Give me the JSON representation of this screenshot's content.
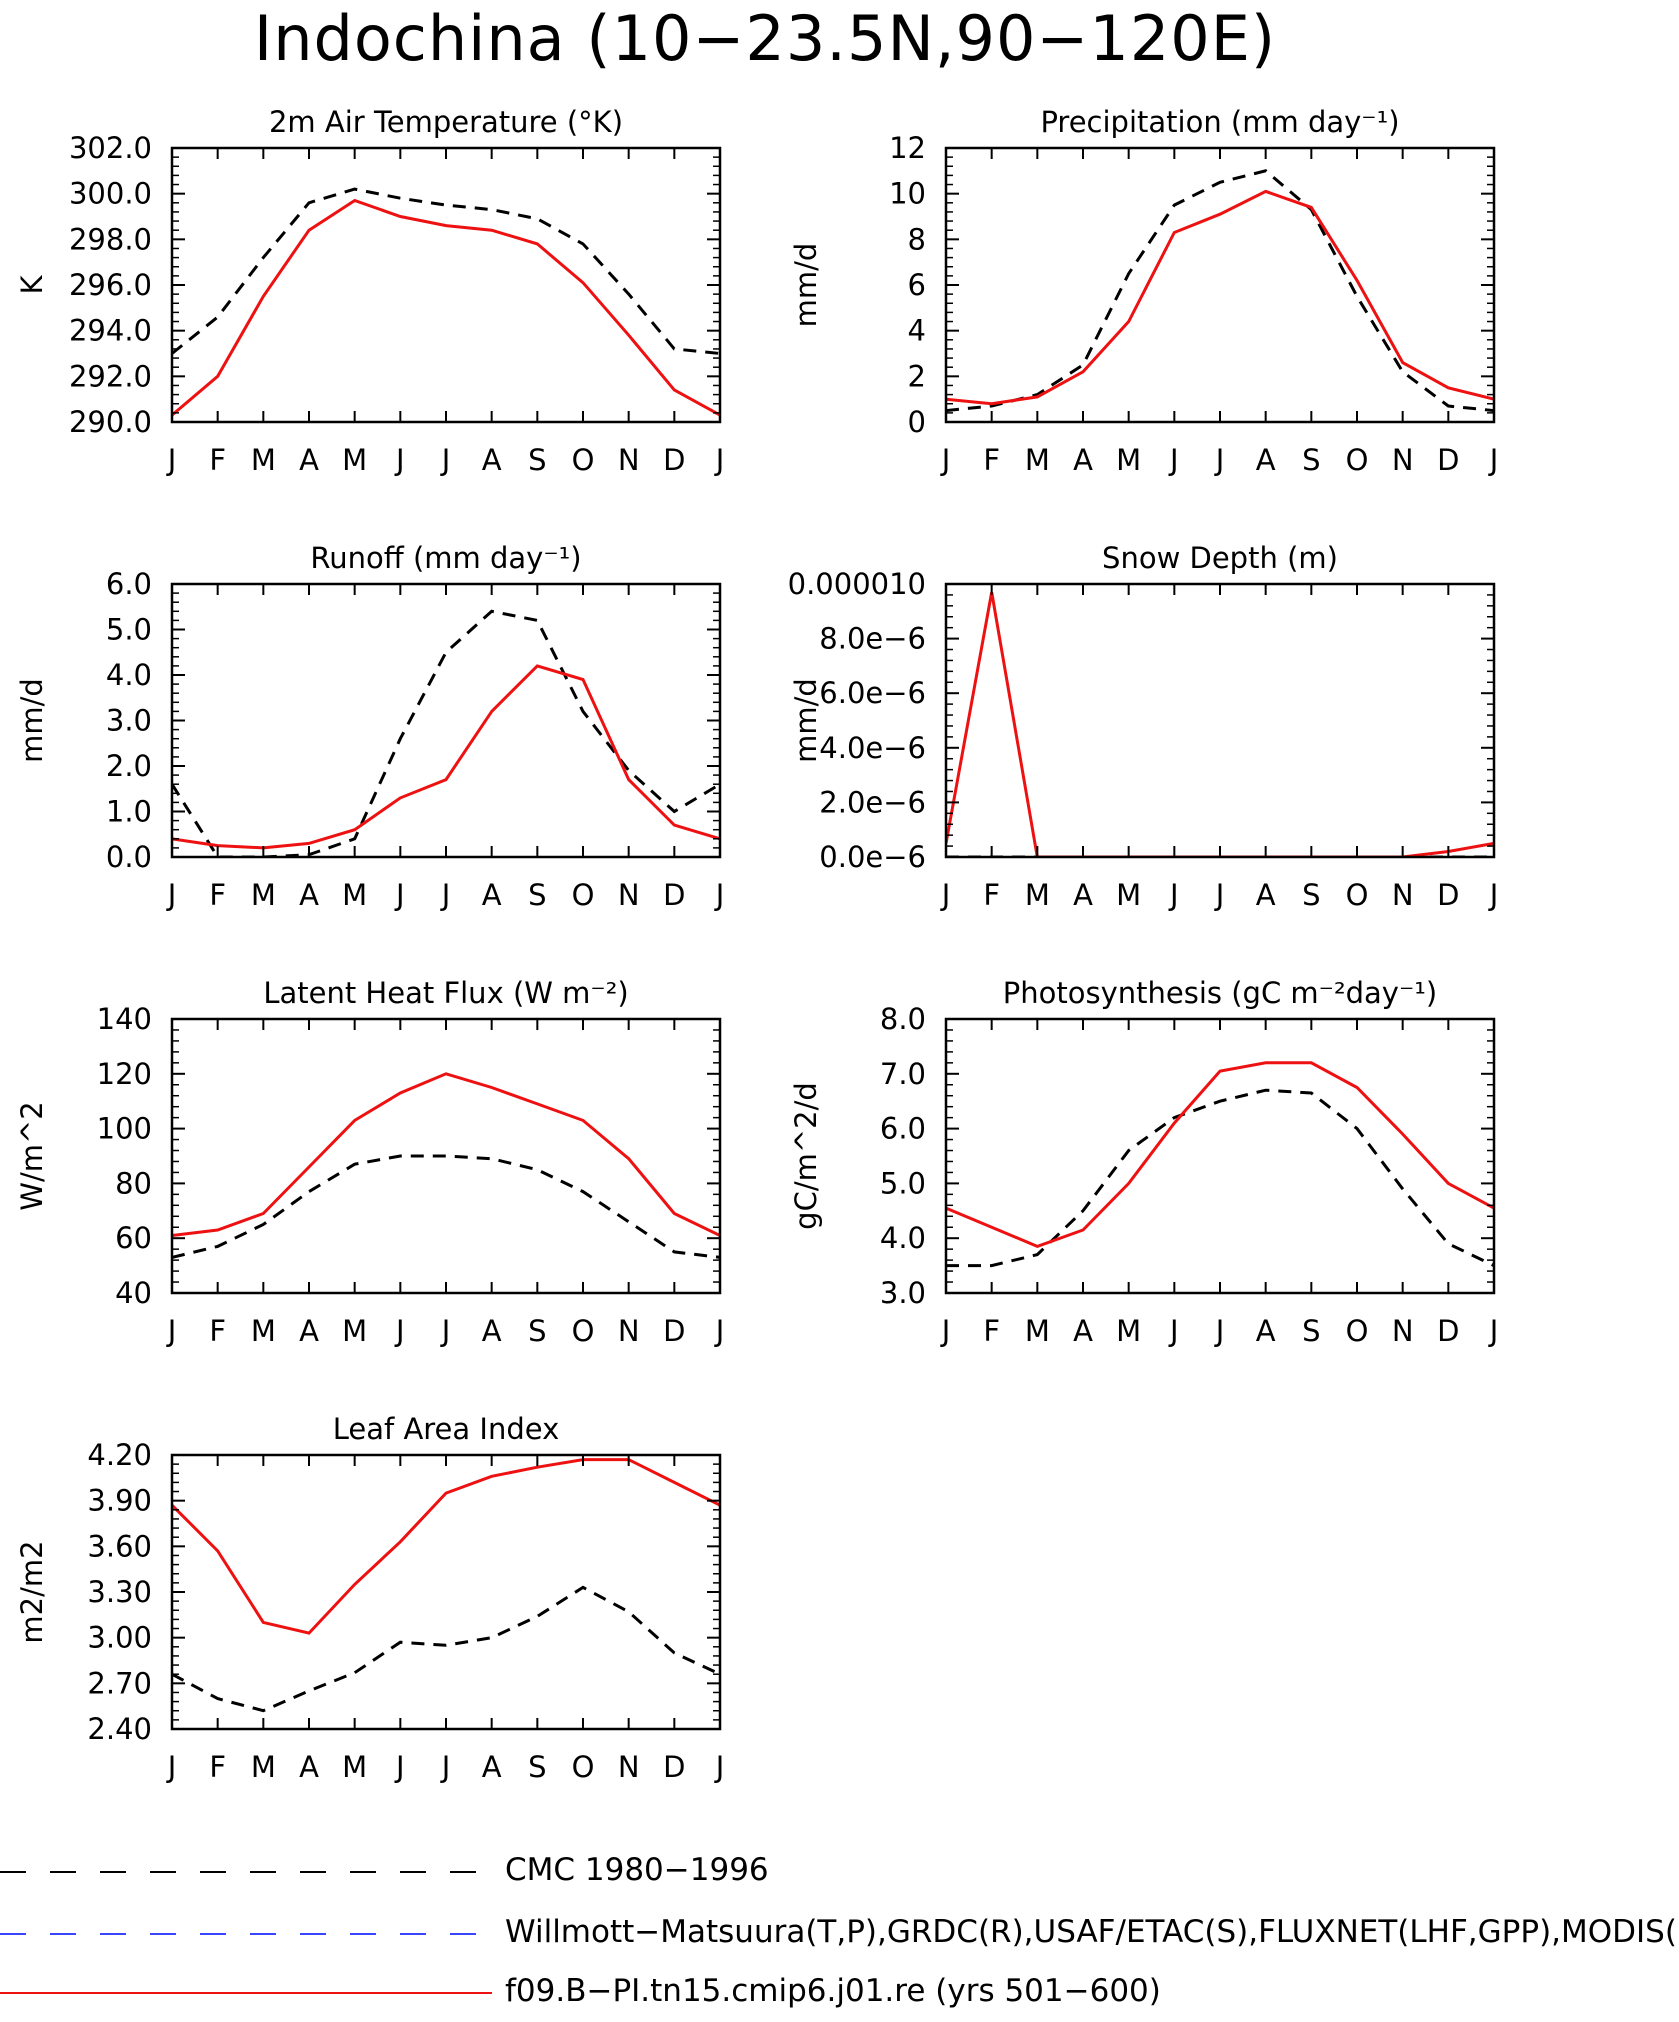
{
  "page_title": "Indochina (10−23.5N,90−120E)",
  "colors": {
    "obs": "#000000",
    "obs2": "#3a45ff",
    "model": "#ee1111"
  },
  "legend": [
    {
      "label": "CMC 1980−1996",
      "color": "#000000",
      "style": "dashed"
    },
    {
      "label": "Willmott−Matsuura(T,P),GRDC(R),USAF/ETAC(S),FLUXNET(LHF,GPP),MODIS(L",
      "color": "#3a45ff",
      "style": "dashed"
    },
    {
      "label": "f09.B−PI.tn15.cmip6.j01.re (yrs 501−600)",
      "color": "#ee1111",
      "style": "solid"
    }
  ],
  "chart_data": [
    {
      "type": "line",
      "title": "2m Air Temperature (°K)",
      "ylabel": "K",
      "x": [
        "J",
        "F",
        "M",
        "A",
        "M",
        "J",
        "J",
        "A",
        "S",
        "O",
        "N",
        "D",
        "J"
      ],
      "ylim": [
        290.0,
        302.0
      ],
      "yticks": [
        "290.0",
        "292.0",
        "294.0",
        "296.0",
        "298.0",
        "300.0",
        "302.0"
      ],
      "series": [
        {
          "key": "obs",
          "values": [
            293.0,
            294.6,
            297.2,
            299.6,
            300.2,
            299.8,
            299.5,
            299.3,
            298.9,
            297.8,
            295.6,
            293.2,
            293.0
          ]
        },
        {
          "key": "model",
          "values": [
            290.3,
            292.0,
            295.5,
            298.4,
            299.7,
            299.0,
            298.6,
            298.4,
            297.8,
            296.1,
            293.8,
            291.4,
            290.3
          ]
        }
      ]
    },
    {
      "type": "line",
      "title": "Precipitation (mm day⁻¹)",
      "ylabel": "mm/d",
      "x": [
        "J",
        "F",
        "M",
        "A",
        "M",
        "J",
        "J",
        "A",
        "S",
        "O",
        "N",
        "D",
        "J"
      ],
      "ylim": [
        0,
        12
      ],
      "yticks": [
        "0",
        "2",
        "4",
        "6",
        "8",
        "10",
        "12"
      ],
      "series": [
        {
          "key": "obs",
          "values": [
            0.5,
            0.7,
            1.2,
            2.5,
            6.5,
            9.5,
            10.5,
            11.0,
            9.3,
            5.5,
            2.2,
            0.7,
            0.5
          ]
        },
        {
          "key": "model",
          "values": [
            1.0,
            0.8,
            1.1,
            2.2,
            4.4,
            8.3,
            9.1,
            10.1,
            9.4,
            6.2,
            2.6,
            1.5,
            1.0
          ]
        }
      ]
    },
    {
      "type": "line",
      "title": "Runoff (mm day⁻¹)",
      "ylabel": "mm/d",
      "x": [
        "J",
        "F",
        "M",
        "A",
        "M",
        "J",
        "J",
        "A",
        "S",
        "O",
        "N",
        "D",
        "J"
      ],
      "ylim": [
        0.0,
        6.0
      ],
      "yticks": [
        "0.0",
        "1.0",
        "2.0",
        "3.0",
        "4.0",
        "5.0",
        "6.0"
      ],
      "series": [
        {
          "key": "obs",
          "values": [
            1.6,
            0.0,
            0.0,
            0.05,
            0.4,
            2.6,
            4.5,
            5.4,
            5.2,
            3.2,
            1.9,
            1.0,
            1.6
          ]
        },
        {
          "key": "model",
          "values": [
            0.4,
            0.25,
            0.2,
            0.3,
            0.6,
            1.3,
            1.7,
            3.2,
            4.2,
            3.9,
            1.7,
            0.7,
            0.4
          ]
        }
      ]
    },
    {
      "type": "line",
      "title": "Snow Depth (m)",
      "ylabel": "mm/d",
      "x": [
        "J",
        "F",
        "M",
        "A",
        "M",
        "J",
        "J",
        "A",
        "S",
        "O",
        "N",
        "D",
        "J"
      ],
      "ylim": [
        0.0,
        1e-05
      ],
      "yticks": [
        "0.0e−6",
        "2.0e−6",
        "4.0e−6",
        "6.0e−6",
        "8.0e−6",
        "0.000010"
      ],
      "series": [
        {
          "key": "obs",
          "values": [
            0,
            0,
            0,
            0,
            0,
            0,
            0,
            0,
            0,
            0,
            0,
            0,
            0
          ]
        },
        {
          "key": "model",
          "values": [
            5e-07,
            9.7e-06,
            0,
            0,
            0,
            0,
            0,
            0,
            0,
            0,
            0,
            2e-07,
            5e-07
          ]
        }
      ]
    },
    {
      "type": "line",
      "title": "Latent Heat Flux (W m⁻²)",
      "ylabel": "W/m^2",
      "x": [
        "J",
        "F",
        "M",
        "A",
        "M",
        "J",
        "J",
        "A",
        "S",
        "O",
        "N",
        "D",
        "J"
      ],
      "ylim": [
        40,
        140
      ],
      "yticks": [
        "40",
        "60",
        "80",
        "100",
        "120",
        "140"
      ],
      "series": [
        {
          "key": "obs",
          "values": [
            53,
            57,
            65,
            77,
            87,
            90,
            90,
            89,
            85,
            77,
            66,
            55,
            53
          ]
        },
        {
          "key": "model",
          "values": [
            61,
            63,
            69,
            86,
            103,
            113,
            120,
            115,
            109,
            103,
            89,
            69,
            61
          ]
        }
      ]
    },
    {
      "type": "line",
      "title": "Photosynthesis (gC m⁻²day⁻¹)",
      "ylabel": "gC/m^2/d",
      "x": [
        "J",
        "F",
        "M",
        "A",
        "M",
        "J",
        "J",
        "A",
        "S",
        "O",
        "N",
        "D",
        "J"
      ],
      "ylim": [
        3.0,
        8.0
      ],
      "yticks": [
        "3.0",
        "4.0",
        "5.0",
        "6.0",
        "7.0",
        "8.0"
      ],
      "series": [
        {
          "key": "obs",
          "values": [
            3.5,
            3.5,
            3.7,
            4.5,
            5.6,
            6.2,
            6.5,
            6.7,
            6.65,
            6.0,
            4.9,
            3.9,
            3.5
          ]
        },
        {
          "key": "model",
          "values": [
            4.55,
            4.2,
            3.85,
            4.15,
            5.0,
            6.1,
            7.05,
            7.2,
            7.2,
            6.75,
            5.9,
            5.0,
            4.55
          ]
        }
      ]
    },
    {
      "type": "line",
      "title": "Leaf Area Index",
      "ylabel": "m2/m2",
      "x": [
        "J",
        "F",
        "M",
        "A",
        "M",
        "J",
        "J",
        "A",
        "S",
        "O",
        "N",
        "D",
        "J"
      ],
      "ylim": [
        2.4,
        4.2
      ],
      "yticks": [
        "2.40",
        "2.70",
        "3.00",
        "3.30",
        "3.60",
        "3.90",
        "4.20"
      ],
      "series": [
        {
          "key": "obs",
          "values": [
            2.76,
            2.6,
            2.52,
            2.65,
            2.77,
            2.97,
            2.95,
            3.0,
            3.14,
            3.33,
            3.17,
            2.9,
            2.76
          ]
        },
        {
          "key": "model",
          "values": [
            3.87,
            3.57,
            3.1,
            3.03,
            3.35,
            3.63,
            3.95,
            4.06,
            4.12,
            4.17,
            4.17,
            4.02,
            3.87
          ]
        }
      ]
    }
  ]
}
